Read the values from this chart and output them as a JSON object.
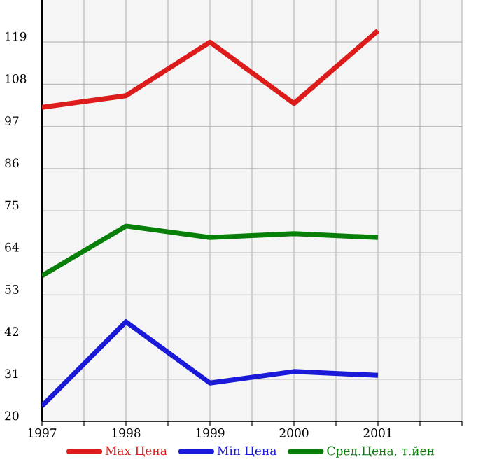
{
  "chart_data": {
    "type": "line",
    "x": [
      1997,
      1998,
      1999,
      2000,
      2001
    ],
    "series": [
      {
        "name": "Max Цена",
        "color": "#dd1c1c",
        "values": [
          102,
          105,
          119,
          103,
          122
        ]
      },
      {
        "name": "Min Цена",
        "color": "#1a1ad8",
        "values": [
          24,
          46,
          30,
          33,
          32
        ]
      },
      {
        "name": "Сред.Цена, т.йен",
        "color": "#087f08",
        "values": [
          58,
          71,
          68,
          69,
          68
        ]
      }
    ],
    "xlim": [
      1997,
      2002
    ],
    "ylim": [
      20,
      130
    ],
    "xticks": [
      1997,
      {
        "value": 1997.5,
        "label": null
      },
      1998,
      {
        "value": 1998.5,
        "label": null
      },
      1999,
      {
        "value": 1999.5,
        "label": null
      },
      2000,
      {
        "value": 2000.5,
        "label": null
      },
      2001,
      {
        "value": 2001.5,
        "label": null
      },
      {
        "value": 2002,
        "label": null
      }
    ],
    "yticks": [
      20,
      31,
      42,
      53,
      64,
      75,
      86,
      97,
      108,
      119
    ],
    "grid": true,
    "legend": "bottom",
    "marker": "none",
    "line_style": "solid"
  }
}
